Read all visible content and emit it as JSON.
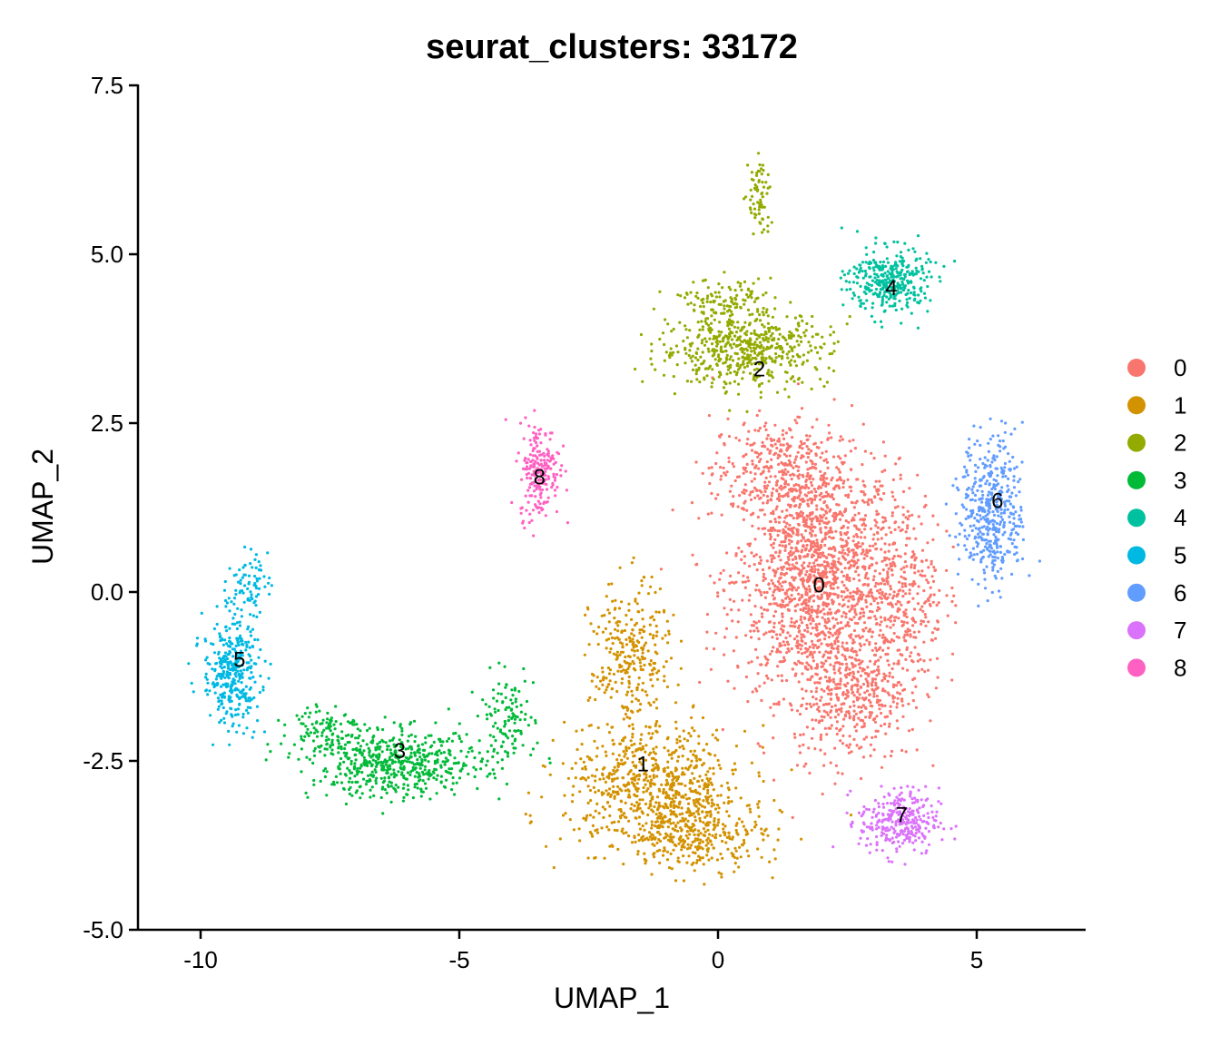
{
  "chart_data": {
    "type": "scatter",
    "title": "seurat_clusters: 33172",
    "xlabel": "UMAP_1",
    "ylabel": "UMAP_2",
    "xlim": [
      -11.2,
      7.2
    ],
    "ylim": [
      -5.0,
      7.5
    ],
    "xticks": [
      {
        "value": -10,
        "label": "-10"
      },
      {
        "value": -5,
        "label": "-5"
      },
      {
        "value": 0,
        "label": "0"
      },
      {
        "value": 5,
        "label": "5"
      }
    ],
    "yticks": [
      {
        "value": -5.0,
        "label": "-5.0"
      },
      {
        "value": -2.5,
        "label": "-2.5"
      },
      {
        "value": 0.0,
        "label": "0.0"
      },
      {
        "value": 2.5,
        "label": "2.5"
      },
      {
        "value": 5.0,
        "label": "5.0"
      },
      {
        "value": 7.5,
        "label": "7.5"
      }
    ],
    "grid": false,
    "legend_position": "right",
    "series": [
      {
        "name": "0",
        "color": "#F8766D",
        "label_pos": [
          1.95,
          0.1
        ]
      },
      {
        "name": "1",
        "color": "#D39200",
        "label_pos": [
          -1.45,
          -2.55
        ]
      },
      {
        "name": "2",
        "color": "#93AA00",
        "label_pos": [
          0.8,
          3.3
        ]
      },
      {
        "name": "3",
        "color": "#00BA38",
        "label_pos": [
          -6.15,
          -2.35
        ]
      },
      {
        "name": "4",
        "color": "#00C19F",
        "label_pos": [
          3.35,
          4.5
        ]
      },
      {
        "name": "5",
        "color": "#00B9E3",
        "label_pos": [
          -9.25,
          -1.0
        ]
      },
      {
        "name": "6",
        "color": "#619CFF",
        "label_pos": [
          5.4,
          1.35
        ]
      },
      {
        "name": "7",
        "color": "#DB72FB",
        "label_pos": [
          3.55,
          -3.3
        ]
      },
      {
        "name": "8",
        "color": "#FF61C3",
        "label_pos": [
          -3.45,
          1.7
        ]
      }
    ]
  }
}
